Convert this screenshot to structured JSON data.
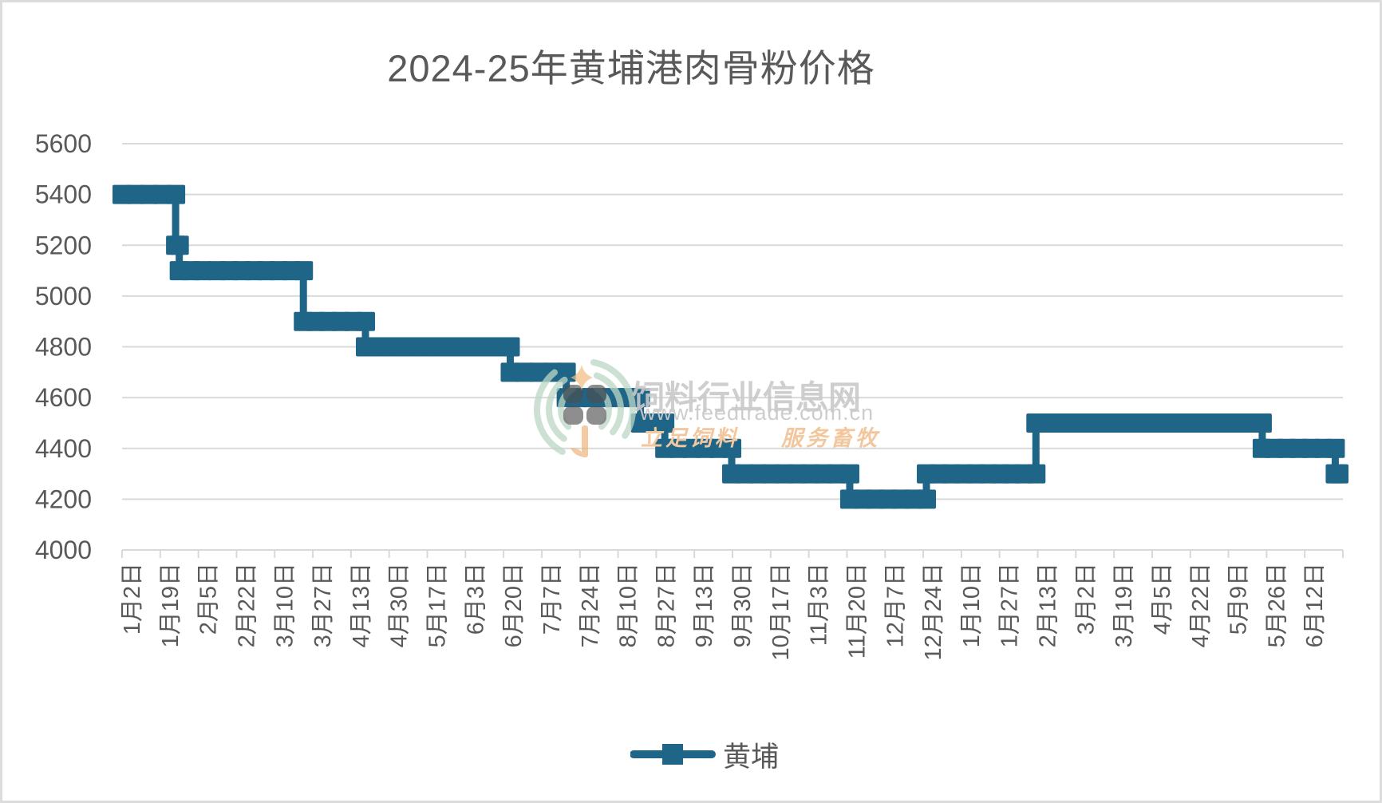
{
  "title": "2024-25年黄埔港肉骨粉价格",
  "legend": {
    "label": "黄埔"
  },
  "watermark": {
    "site_name": "饲料行业信息网",
    "url": "www.feedtrade.com.cn",
    "slogan_left": "立足饲料",
    "slogan_right": "服务畜牧"
  },
  "colors": {
    "series": "#1F6587",
    "axis_text": "#595959",
    "gridline": "#D9D9D9",
    "border": "#DCDCDC",
    "watermark_text": "#C9C9C9",
    "watermark_orange": "#F2C79E",
    "watermark_green": "#BCD8C6",
    "watermark_leaf": "#4E4E4E"
  },
  "chart_data": {
    "type": "line",
    "title": "2024-25年黄埔港肉骨粉价格",
    "xlabel": "",
    "ylabel": "",
    "grid": "horizontal",
    "legend_position": "bottom",
    "y_axis": {
      "min": 4000,
      "max": 5600,
      "tick_step": 200,
      "tick_labels": [
        4000,
        4200,
        4400,
        4600,
        4800,
        5000,
        5200,
        5400,
        5600
      ]
    },
    "x_labels": [
      "1月2日",
      "1月19日",
      "2月5日",
      "2月22日",
      "3月10日",
      "3月27日",
      "4月13日",
      "4月30日",
      "5月17日",
      "6月3日",
      "6月20日",
      "7月7日",
      "7月24日",
      "8月10日",
      "8月27日",
      "9月13日",
      "9月30日",
      "10月17日",
      "11月3日",
      "11月20日",
      "12月7日",
      "12月24日",
      "1月10日",
      "1月27日",
      "2月13日",
      "3月2日",
      "3月19日",
      "4月5日",
      "4月22日",
      "5月9日",
      "5月26日",
      "6月12日"
    ],
    "series": [
      {
        "name": "黄埔",
        "color": "#1F6587",
        "marker": "square",
        "values_at_x_labels": [
          5400,
          5200,
          5100,
          5100,
          5100,
          4900,
          4900,
          4800,
          4800,
          4800,
          4700,
          4700,
          4600,
          4600,
          4400,
          4400,
          4300,
          4300,
          4300,
          4200,
          4200,
          4300,
          4300,
          4300,
          4500,
          4500,
          4500,
          4500,
          4500,
          4500,
          4400,
          4400
        ],
        "steps": [
          {
            "from": 0.0,
            "to": 0.044,
            "value": 5400
          },
          {
            "from": 0.044,
            "to": 0.047,
            "value": 5200
          },
          {
            "from": 0.047,
            "to": 0.066,
            "value": 5100
          },
          {
            "from": 0.078,
            "to": 0.149,
            "value": 5100
          },
          {
            "from": 0.149,
            "to": 0.2,
            "value": 4900
          },
          {
            "from": 0.2,
            "to": 0.319,
            "value": 4800
          },
          {
            "from": 0.319,
            "to": 0.365,
            "value": 4700
          },
          {
            "from": 0.365,
            "to": 0.426,
            "value": 4600
          },
          {
            "from": 0.426,
            "to": 0.446,
            "value": 4500
          },
          {
            "from": 0.446,
            "to": 0.501,
            "value": 4400
          },
          {
            "from": 0.501,
            "to": 0.598,
            "value": 4300
          },
          {
            "from": 0.598,
            "to": 0.661,
            "value": 4200
          },
          {
            "from": 0.661,
            "to": 0.722,
            "value": 4300
          },
          {
            "from": 0.731,
            "to": 0.751,
            "value": 4300
          },
          {
            "from": 0.751,
            "to": 0.937,
            "value": 4500
          },
          {
            "from": 0.937,
            "to": 0.997,
            "value": 4400
          },
          {
            "from": 0.997,
            "to": 1.0,
            "value": 4300
          }
        ]
      }
    ]
  }
}
